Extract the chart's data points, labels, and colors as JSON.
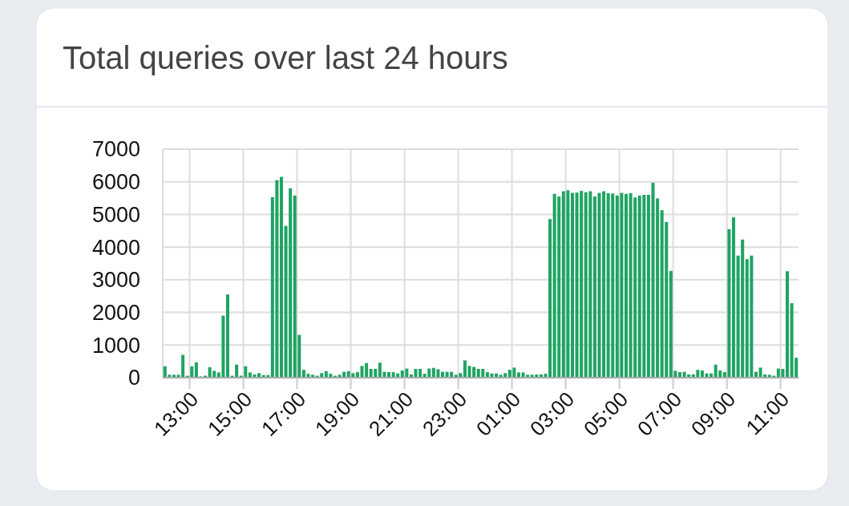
{
  "chart_data": {
    "type": "bar",
    "stacked": true,
    "title": "Total queries over last 24 hours",
    "x": [
      "2000-01-01T12:05",
      "2000-01-01T12:15",
      "2000-01-01T12:25",
      "2000-01-01T12:35",
      "2000-01-01T12:45",
      "2000-01-01T12:55",
      "2000-01-01T13:05",
      "2000-01-01T13:15",
      "2000-01-01T13:25",
      "2000-01-01T13:35",
      "2000-01-01T13:45",
      "2000-01-01T13:55",
      "2000-01-01T14:05",
      "2000-01-01T14:15",
      "2000-01-01T14:25",
      "2000-01-01T14:35",
      "2000-01-01T14:45",
      "2000-01-01T14:55",
      "2000-01-01T15:05",
      "2000-01-01T15:15",
      "2000-01-01T15:25",
      "2000-01-01T15:35",
      "2000-01-01T15:45",
      "2000-01-01T15:55",
      "2000-01-01T16:05",
      "2000-01-01T16:15",
      "2000-01-01T16:25",
      "2000-01-01T16:35",
      "2000-01-01T16:45",
      "2000-01-01T16:55",
      "2000-01-01T17:05",
      "2000-01-01T17:15",
      "2000-01-01T17:25",
      "2000-01-01T17:35",
      "2000-01-01T17:45",
      "2000-01-01T17:55",
      "2000-01-01T18:05",
      "2000-01-01T18:15",
      "2000-01-01T18:25",
      "2000-01-01T18:35",
      "2000-01-01T18:45",
      "2000-01-01T18:55",
      "2000-01-01T19:05",
      "2000-01-01T19:15",
      "2000-01-01T19:25",
      "2000-01-01T19:35",
      "2000-01-01T19:45",
      "2000-01-01T19:55",
      "2000-01-01T20:05",
      "2000-01-01T20:15",
      "2000-01-01T20:25",
      "2000-01-01T20:35",
      "2000-01-01T20:45",
      "2000-01-01T20:55",
      "2000-01-01T21:05",
      "2000-01-01T21:15",
      "2000-01-01T21:25",
      "2000-01-01T21:35",
      "2000-01-01T21:45",
      "2000-01-01T21:55",
      "2000-01-01T22:05",
      "2000-01-01T22:15",
      "2000-01-01T22:25",
      "2000-01-01T22:35",
      "2000-01-01T22:45",
      "2000-01-01T22:55",
      "2000-01-01T23:05",
      "2000-01-01T23:15",
      "2000-01-01T23:25",
      "2000-01-01T23:35",
      "2000-01-01T23:45",
      "2000-01-01T23:55",
      "2000-01-02T00:05",
      "2000-01-02T00:15",
      "2000-01-02T00:25",
      "2000-01-02T00:35",
      "2000-01-02T00:45",
      "2000-01-02T00:55",
      "2000-01-02T01:05",
      "2000-01-02T01:15",
      "2000-01-02T01:25",
      "2000-01-02T01:35",
      "2000-01-02T01:45",
      "2000-01-02T01:55",
      "2000-01-02T02:05",
      "2000-01-02T02:15",
      "2000-01-02T02:25",
      "2000-01-02T02:35",
      "2000-01-02T02:45",
      "2000-01-02T02:55",
      "2000-01-02T03:05",
      "2000-01-02T03:15",
      "2000-01-02T03:25",
      "2000-01-02T03:35",
      "2000-01-02T03:45",
      "2000-01-02T03:55",
      "2000-01-02T04:05",
      "2000-01-02T04:15",
      "2000-01-02T04:25",
      "2000-01-02T04:35",
      "2000-01-02T04:45",
      "2000-01-02T04:55",
      "2000-01-02T05:05",
      "2000-01-02T05:15",
      "2000-01-02T05:25",
      "2000-01-02T05:35",
      "2000-01-02T05:45",
      "2000-01-02T05:55",
      "2000-01-02T06:05",
      "2000-01-02T06:15",
      "2000-01-02T06:25",
      "2000-01-02T06:35",
      "2000-01-02T06:45",
      "2000-01-02T06:55",
      "2000-01-02T07:05",
      "2000-01-02T07:15",
      "2000-01-02T07:25",
      "2000-01-02T07:35",
      "2000-01-02T07:45",
      "2000-01-02T07:55",
      "2000-01-02T08:05",
      "2000-01-02T08:15",
      "2000-01-02T08:25",
      "2000-01-02T08:35",
      "2000-01-02T08:45",
      "2000-01-02T08:55",
      "2000-01-02T09:05",
      "2000-01-02T09:15",
      "2000-01-02T09:25",
      "2000-01-02T09:35",
      "2000-01-02T09:45",
      "2000-01-02T09:55",
      "2000-01-02T10:05",
      "2000-01-02T10:15",
      "2000-01-02T10:25",
      "2000-01-02T10:35",
      "2000-01-02T10:45",
      "2000-01-02T10:55",
      "2000-01-02T11:05",
      "2000-01-02T11:15",
      "2000-01-02T11:25",
      "2000-01-02T11:35"
    ],
    "series": [
      {
        "color": "#999999",
        "values": [
          20,
          20,
          20,
          20,
          20,
          20,
          20,
          20,
          20,
          20,
          20,
          20,
          20,
          20,
          20,
          20,
          20,
          20,
          20,
          20,
          20,
          20,
          20,
          20,
          20,
          20,
          20,
          20,
          20,
          20,
          20,
          20,
          20,
          20,
          20,
          20,
          20,
          20,
          20,
          20,
          20,
          20,
          20,
          20,
          20,
          20,
          20,
          20,
          20,
          20,
          20,
          20,
          20,
          20,
          20,
          20,
          20,
          20,
          20,
          20,
          20,
          20,
          20,
          20,
          20,
          20,
          20,
          20,
          20,
          20,
          20,
          20,
          20,
          20,
          20,
          20,
          20,
          20,
          20,
          20,
          20,
          20,
          20,
          20,
          20,
          20,
          20,
          20,
          20,
          20,
          20,
          20,
          20,
          20,
          20,
          20,
          20,
          20,
          20,
          20,
          20,
          20,
          20,
          20,
          20,
          20,
          20,
          20,
          20,
          20,
          20,
          20,
          20,
          20,
          20,
          20,
          20,
          20,
          20,
          20,
          20,
          20,
          20,
          20,
          20,
          20,
          20,
          20,
          20,
          20,
          20,
          20,
          20,
          20,
          20,
          20,
          20,
          20,
          20,
          20,
          20,
          20
        ]
      },
      {
        "color": "#1fa463",
        "values": [
          330,
          70,
          70,
          70,
          680,
          40,
          330,
          450,
          20,
          40,
          300,
          190,
          140,
          1880,
          2530,
          40,
          380,
          40,
          330,
          140,
          80,
          120,
          60,
          60,
          5510,
          6030,
          6130,
          4630,
          5780,
          5560,
          1290,
          220,
          100,
          70,
          40,
          120,
          180,
          100,
          40,
          70,
          160,
          180,
          120,
          150,
          340,
          430,
          250,
          250,
          440,
          160,
          150,
          150,
          110,
          200,
          260,
          80,
          250,
          250,
          100,
          260,
          280,
          240,
          160,
          160,
          160,
          70,
          120,
          510,
          340,
          310,
          250,
          250,
          150,
          110,
          110,
          70,
          120,
          220,
          290,
          140,
          140,
          70,
          70,
          80,
          80,
          100,
          4840,
          5610,
          5530,
          5690,
          5720,
          5640,
          5650,
          5700,
          5660,
          5690,
          5530,
          5640,
          5690,
          5630,
          5620,
          5560,
          5640,
          5610,
          5630,
          5500,
          5560,
          5580,
          5580,
          5950,
          5470,
          5110,
          4750,
          3250,
          190,
          150,
          160,
          80,
          80,
          220,
          200,
          110,
          110,
          380,
          200,
          150,
          4530,
          4890,
          3720,
          4210,
          3610,
          3720,
          160,
          290,
          80,
          70,
          40,
          260,
          250,
          3240,
          2260,
          590
        ]
      }
    ],
    "xlim": [
      "2000-01-01T12:00",
      "2000-01-02T11:40"
    ],
    "xticks": [
      {
        "value": "2000-01-01T13:00",
        "label": "13:00"
      },
      {
        "value": "2000-01-01T15:00",
        "label": "15:00"
      },
      {
        "value": "2000-01-01T17:00",
        "label": "17:00"
      },
      {
        "value": "2000-01-01T19:00",
        "label": "19:00"
      },
      {
        "value": "2000-01-01T21:00",
        "label": "21:00"
      },
      {
        "value": "2000-01-01T23:00",
        "label": "23:00"
      },
      {
        "value": "2000-01-02T01:00",
        "label": "01:00"
      },
      {
        "value": "2000-01-02T03:00",
        "label": "03:00"
      },
      {
        "value": "2000-01-02T05:00",
        "label": "05:00"
      },
      {
        "value": "2000-01-02T07:00",
        "label": "07:00"
      },
      {
        "value": "2000-01-02T09:00",
        "label": "09:00"
      },
      {
        "value": "2000-01-02T11:00",
        "label": "11:00"
      }
    ],
    "ylim": [
      0,
      7000
    ],
    "yticks": [
      0,
      1000,
      2000,
      3000,
      4000,
      5000,
      6000,
      7000
    ],
    "grid": true
  }
}
